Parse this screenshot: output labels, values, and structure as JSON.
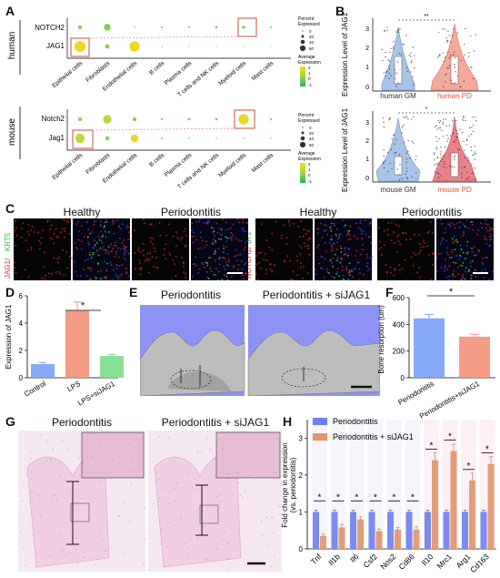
{
  "panels": {
    "A": "A",
    "B": "B",
    "C": "C",
    "D": "D",
    "E": "E",
    "F": "F",
    "G": "G",
    "H": "H"
  },
  "panelA": {
    "human": {
      "species": "human",
      "genes": [
        "NOTCH2",
        "JAG1"
      ],
      "legend_size_title": "Percent\nExpressed",
      "legend_size_values": [
        "0",
        "20",
        "40",
        "60"
      ],
      "legend_color_title": "Average\nExpression",
      "legend_color_values": [
        "2",
        "1",
        "0",
        "-1"
      ]
    },
    "mouse": {
      "species": "mouse",
      "genes": [
        "Notch2",
        "Jag1"
      ],
      "legend_size_title": "Percent\nExpressed",
      "legend_size_values": [
        "0",
        "20",
        "40",
        "60"
      ],
      "legend_color_title": "Average\nExpression",
      "legend_color_values": [
        "2",
        "1",
        "0",
        "-1"
      ]
    },
    "cell_types": [
      "Epithelial cells",
      "Fibroblasts",
      "Endothelial cells",
      "B cells",
      "Plasma cells",
      "T cells and NK cells",
      "Myeloid cells",
      "Mast cells"
    ]
  },
  "panelB": {
    "top": {
      "ylabel": "Expression Level of JAG1",
      "groups": [
        "human GM",
        "human PD"
      ],
      "sig": "**",
      "yticks": [
        "0",
        "1",
        "2",
        "3"
      ]
    },
    "bottom": {
      "ylabel": "Expression Level of JAG1",
      "groups": [
        "mouse GM",
        "mouse PD"
      ],
      "sig": "*",
      "yticks": [
        "0",
        "1",
        "2",
        "3"
      ]
    }
  },
  "panelC": {
    "left_stain": [
      "JAG1/",
      "KRT5"
    ],
    "right_stain": [
      "NOTCH2/",
      "LY2"
    ],
    "titles": [
      "Healthy",
      "Periodontitis",
      "Healthy",
      "Periodontitis"
    ]
  },
  "chart_data": [
    {
      "id": "D",
      "type": "bar",
      "categories": [
        "Control",
        "LPS",
        "LPS+siJAG1"
      ],
      "values": [
        1.0,
        4.9,
        1.6
      ],
      "errors": [
        0.12,
        0.65,
        0.1
      ],
      "ylabel": "Expression of JAG1",
      "ylim": [
        0,
        6
      ],
      "yticks": [
        "0",
        "2",
        "4",
        "6"
      ],
      "colors": [
        "#7aa2f7",
        "#f4917a",
        "#7dde8a"
      ],
      "sig": "*"
    },
    {
      "id": "F",
      "type": "bar",
      "categories": [
        "Periodontitis",
        "Periodontitis+siJAG1"
      ],
      "values": [
        445,
        308
      ],
      "errors": [
        30,
        18
      ],
      "ylabel": "Bone resorption (um)",
      "ylim": [
        0,
        600
      ],
      "yticks": [
        "0",
        "200",
        "400",
        "600"
      ],
      "colors": [
        "#7aa2f7",
        "#f4917a"
      ],
      "sig": "*"
    },
    {
      "id": "H",
      "type": "bar",
      "categories": [
        "Tnf",
        "Il1b",
        "Il6",
        "Csf2",
        "Nos2",
        "Cd86",
        "Il10",
        "Mrc1",
        "Arg1",
        "Cd163"
      ],
      "series": [
        {
          "name": "Periodontitis",
          "values": [
            1,
            1,
            1,
            1,
            1,
            1,
            1,
            1,
            1,
            1
          ],
          "errors": [
            0.05,
            0.05,
            0.05,
            0.05,
            0.05,
            0.05,
            0.05,
            0.05,
            0.05,
            0.05
          ],
          "color": "#6f7ff0"
        },
        {
          "name": "Periodontitis + siJAG1",
          "values": [
            0.35,
            0.58,
            0.8,
            0.48,
            0.52,
            0.52,
            2.4,
            2.65,
            1.85,
            2.3
          ],
          "errors": [
            0.05,
            0.08,
            0.07,
            0.06,
            0.06,
            0.08,
            0.2,
            0.18,
            0.2,
            0.2
          ],
          "color": "#e2946a"
        }
      ],
      "ylabel": "Fold change in expression\n(vs. periodontitis)",
      "ylim": [
        0,
        3.5
      ],
      "yticks": [
        "0",
        "1",
        "2",
        "3"
      ],
      "sig": "*"
    }
  ],
  "panelE": {
    "titles": [
      "Periodontitis",
      "Periodontitis + siJAG1"
    ]
  },
  "panelG": {
    "titles": [
      "Periodontitis",
      "Periodontitis + siJAG1"
    ]
  }
}
